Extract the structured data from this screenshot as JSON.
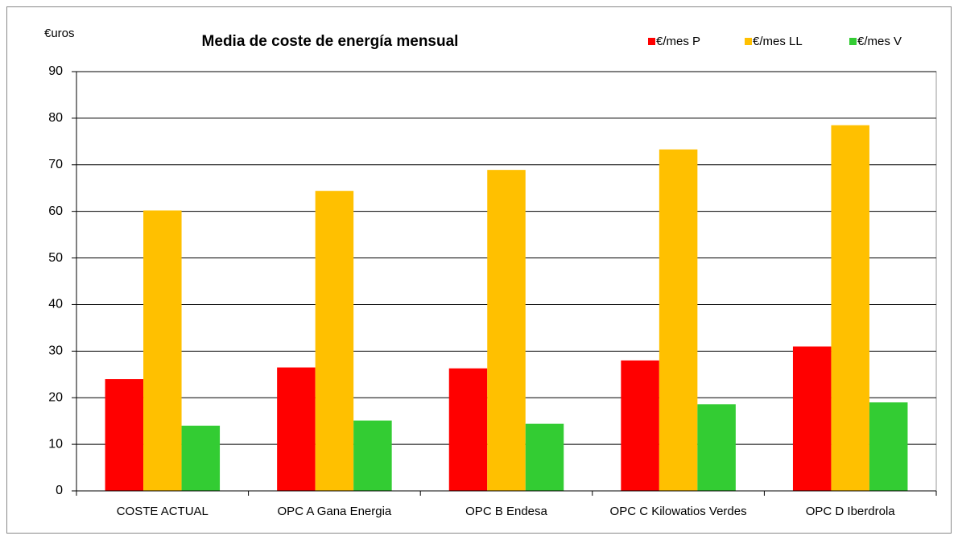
{
  "chart_data": {
    "type": "bar",
    "title": "Media de coste de energía mensual",
    "y_axis_label": "€uros",
    "categories": [
      "COSTE ACTUAL",
      "OPC A Gana Energia",
      "OPC B Endesa",
      "OPC C Kilowatios Verdes",
      "OPC D Iberdrola"
    ],
    "series": [
      {
        "name": "€/mes P",
        "color": "#ff0000",
        "values": [
          24,
          26.5,
          26.3,
          28,
          31
        ]
      },
      {
        "name": "€/mes LL",
        "color": "#ffc000",
        "values": [
          60.2,
          64.4,
          68.9,
          73.3,
          78.5
        ]
      },
      {
        "name": "€/mes V",
        "color": "#33cc33",
        "values": [
          14,
          15.1,
          14.4,
          18.6,
          19
        ]
      }
    ],
    "ylim": [
      0,
      90
    ],
    "yticks": [
      0,
      10,
      20,
      30,
      40,
      50,
      60,
      70,
      80,
      90
    ],
    "grid": true,
    "legend": "top-right"
  }
}
